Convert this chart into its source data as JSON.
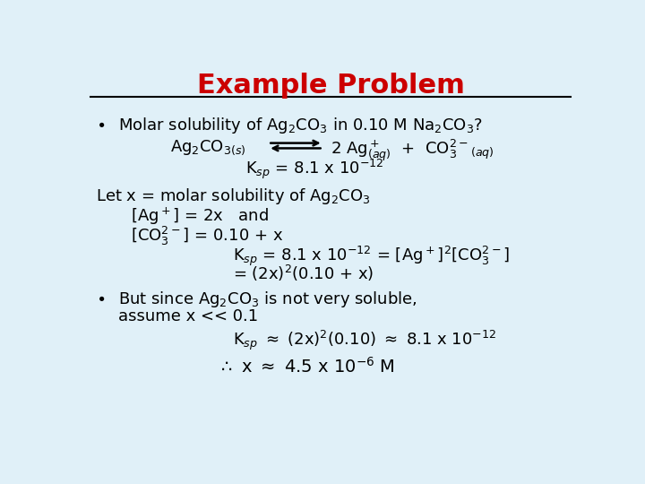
{
  "title": "Example Problem",
  "title_color": "#CC0000",
  "bg_color": "#E0F0F8",
  "text_color": "#000000",
  "fig_width": 7.2,
  "fig_height": 5.4,
  "dpi": 100
}
